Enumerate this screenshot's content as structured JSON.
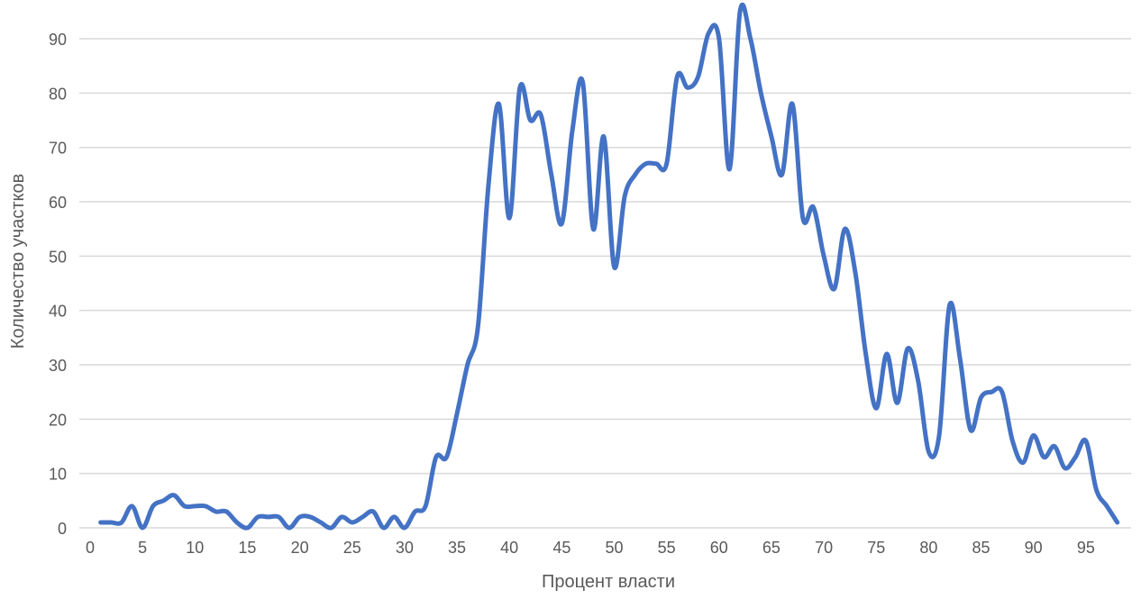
{
  "chart_data": {
    "type": "line",
    "smooth": true,
    "title": "",
    "xlabel": "Процент власти",
    "ylabel": "Количество участков",
    "xlim": [
      0,
      100
    ],
    "ylim": [
      0,
      95
    ],
    "x_ticks": [
      0,
      5,
      10,
      15,
      20,
      25,
      30,
      35,
      40,
      45,
      50,
      55,
      60,
      65,
      70,
      75,
      80,
      85,
      90,
      95
    ],
    "y_ticks": [
      0,
      10,
      20,
      30,
      40,
      50,
      60,
      70,
      80,
      90
    ],
    "grid": "horizontal",
    "legend": "none",
    "color": "#4472C4",
    "x": [
      1,
      2,
      3,
      4,
      5,
      6,
      7,
      8,
      9,
      10,
      11,
      12,
      13,
      14,
      15,
      16,
      17,
      18,
      19,
      20,
      21,
      22,
      23,
      24,
      25,
      26,
      27,
      28,
      29,
      30,
      31,
      32,
      33,
      34,
      35,
      36,
      37,
      38,
      39,
      40,
      41,
      42,
      43,
      44,
      45,
      46,
      47,
      48,
      49,
      50,
      51,
      52,
      53,
      54,
      55,
      56,
      57,
      58,
      59,
      60,
      61,
      62,
      63,
      64,
      65,
      66,
      67,
      68,
      69,
      70,
      71,
      72,
      73,
      74,
      75,
      76,
      77,
      78,
      79,
      80,
      81,
      82,
      83,
      84,
      85,
      86,
      87,
      88,
      89,
      90,
      91,
      92,
      93,
      94,
      95,
      96,
      97,
      98
    ],
    "y": [
      1,
      1,
      1,
      4,
      0,
      4,
      5,
      6,
      4,
      4,
      4,
      3,
      3,
      1,
      0,
      2,
      2,
      2,
      0,
      2,
      2,
      1,
      0,
      2,
      1,
      2,
      3,
      0,
      2,
      0,
      3,
      4,
      13,
      13,
      21,
      30,
      37,
      63,
      78,
      57,
      81,
      75,
      76,
      65,
      56,
      73,
      82,
      55,
      72,
      48,
      61,
      65,
      67,
      67,
      67,
      83,
      81,
      83,
      91,
      90,
      66,
      95,
      90,
      80,
      72,
      65,
      78,
      57,
      59,
      50,
      44,
      55,
      47,
      32,
      22,
      32,
      23,
      33,
      27,
      14,
      17,
      41,
      31,
      18,
      24,
      25,
      25,
      16,
      12,
      17,
      13,
      15,
      11,
      13,
      16,
      7,
      4,
      1
    ]
  }
}
